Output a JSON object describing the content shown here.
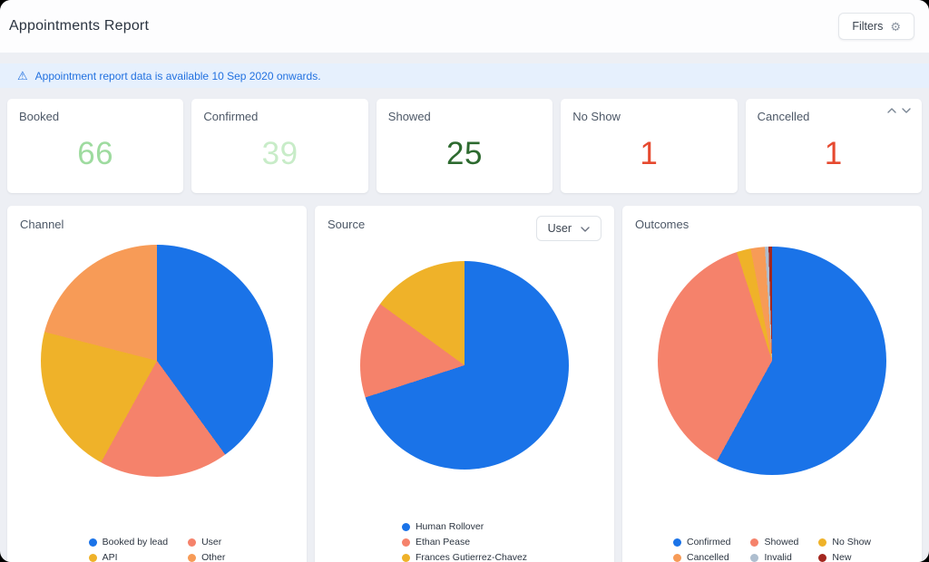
{
  "header": {
    "title": "Appointments Report",
    "filters_label": "Filters"
  },
  "banner": {
    "text": "Appointment report data is available 10 Sep 2020 onwards."
  },
  "stats": [
    {
      "label": "Booked",
      "value": "66",
      "color": "#9edb9f"
    },
    {
      "label": "Confirmed",
      "value": "39",
      "color": "#c8ecc8"
    },
    {
      "label": "Showed",
      "value": "25",
      "color": "#2d6a2f"
    },
    {
      "label": "No Show",
      "value": "1",
      "color": "#e6492f"
    },
    {
      "label": "Cancelled",
      "value": "1",
      "color": "#e6492f"
    }
  ],
  "chart_data": [
    {
      "type": "pie",
      "title": "Channel",
      "legend_columns": 2,
      "legend_position": "bottom",
      "slices": [
        {
          "label": "Booked by lead",
          "color": "#1a73e8",
          "percent": 40
        },
        {
          "label": "User",
          "color": "#f5826b",
          "percent": 18
        },
        {
          "label": "API",
          "color": "#efb229",
          "percent": 21
        },
        {
          "label": "Other",
          "color": "#f79b57",
          "percent": 21
        }
      ]
    },
    {
      "type": "pie",
      "title": "Source",
      "filter_label": "User",
      "legend_columns": 1,
      "legend_position": "bottom",
      "slices": [
        {
          "label": "Human Rollover",
          "color": "#1a73e8",
          "percent": 70
        },
        {
          "label": "Ethan Pease",
          "color": "#f5826b",
          "percent": 15
        },
        {
          "label": "Frances Gutierrez-Chavez",
          "color": "#efb229",
          "percent": 15
        }
      ]
    },
    {
      "type": "pie",
      "title": "Outcomes",
      "legend_columns": 3,
      "legend_position": "bottom",
      "slices": [
        {
          "label": "Confirmed",
          "color": "#1a73e8",
          "percent": 58
        },
        {
          "label": "Showed",
          "color": "#f5826b",
          "percent": 37
        },
        {
          "label": "No Show",
          "color": "#efb229",
          "percent": 2
        },
        {
          "label": "Cancelled",
          "color": "#f79b57",
          "percent": 2
        },
        {
          "label": "Invalid",
          "color": "#aebecf",
          "percent": 0.5
        },
        {
          "label": "New",
          "color": "#a3271f",
          "percent": 0.5
        }
      ]
    }
  ]
}
